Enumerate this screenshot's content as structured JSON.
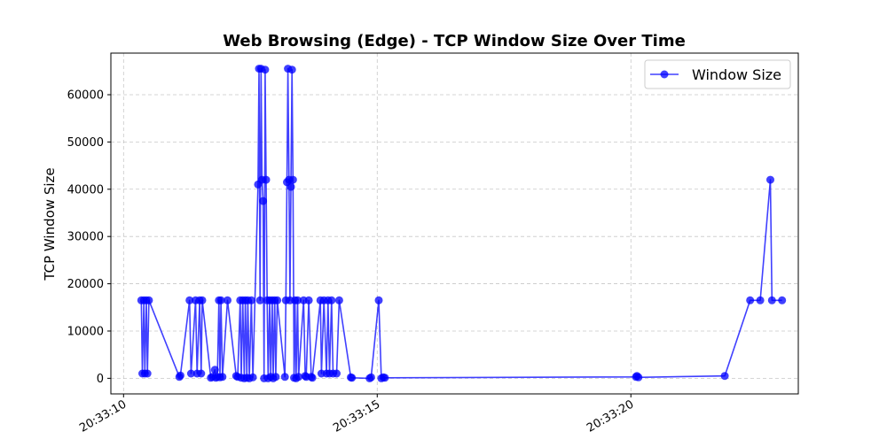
{
  "chart_data": {
    "type": "line",
    "title": "Web Browsing (Edge) - TCP Window Size Over Time",
    "xlabel": "",
    "ylabel": "TCP Window Size",
    "x_ticks": [
      "20:33:10",
      "20:33:15",
      "20:33:20"
    ],
    "x_tick_values": [
      10,
      15,
      20
    ],
    "y_ticks": [
      0,
      10000,
      20000,
      30000,
      40000,
      50000,
      60000
    ],
    "xlim": [
      9.75,
      23.3
    ],
    "ylim": [
      -3300,
      68800
    ],
    "grid": true,
    "legend_position": "upper right",
    "x_unit": "seconds after 20:33:00",
    "series": [
      {
        "name": "Window Size",
        "color": "#0000ff",
        "marker": "circle",
        "points": [
          [
            10.35,
            16500
          ],
          [
            10.37,
            1000
          ],
          [
            10.4,
            16500
          ],
          [
            10.42,
            1000
          ],
          [
            10.45,
            16500
          ],
          [
            10.47,
            1000
          ],
          [
            10.5,
            16500
          ],
          [
            11.1,
            300
          ],
          [
            11.12,
            600
          ],
          [
            11.3,
            16500
          ],
          [
            11.33,
            1000
          ],
          [
            11.42,
            16500
          ],
          [
            11.45,
            1000
          ],
          [
            11.5,
            16500
          ],
          [
            11.53,
            1000
          ],
          [
            11.55,
            16500
          ],
          [
            11.72,
            100
          ],
          [
            11.75,
            300
          ],
          [
            11.8,
            1800
          ],
          [
            11.82,
            100
          ],
          [
            11.85,
            300
          ],
          [
            11.88,
            16500
          ],
          [
            11.9,
            200
          ],
          [
            11.92,
            16500
          ],
          [
            11.95,
            300
          ],
          [
            12.05,
            16500
          ],
          [
            12.22,
            500
          ],
          [
            12.25,
            300
          ],
          [
            12.3,
            16500
          ],
          [
            12.32,
            100
          ],
          [
            12.35,
            16500
          ],
          [
            12.38,
            0
          ],
          [
            12.4,
            16500
          ],
          [
            12.43,
            100
          ],
          [
            12.45,
            16500
          ],
          [
            12.48,
            0
          ],
          [
            12.52,
            16500
          ],
          [
            12.55,
            200
          ],
          [
            12.65,
            41000
          ],
          [
            12.67,
            65500
          ],
          [
            12.69,
            16500
          ],
          [
            12.71,
            65500
          ],
          [
            12.73,
            42000
          ],
          [
            12.75,
            37500
          ],
          [
            12.77,
            0
          ],
          [
            12.79,
            65300
          ],
          [
            12.81,
            42000
          ],
          [
            12.83,
            16500
          ],
          [
            12.85,
            0
          ],
          [
            12.88,
            16500
          ],
          [
            12.9,
            300
          ],
          [
            12.93,
            16500
          ],
          [
            12.95,
            0
          ],
          [
            12.98,
            16500
          ],
          [
            13.0,
            300
          ],
          [
            13.03,
            16500
          ],
          [
            13.18,
            300
          ],
          [
            13.2,
            16500
          ],
          [
            13.22,
            41500
          ],
          [
            13.24,
            65500
          ],
          [
            13.26,
            42000
          ],
          [
            13.28,
            16500
          ],
          [
            13.3,
            40500
          ],
          [
            13.32,
            65300
          ],
          [
            13.34,
            42000
          ],
          [
            13.36,
            100
          ],
          [
            13.38,
            16500
          ],
          [
            13.4,
            0
          ],
          [
            13.43,
            16500
          ],
          [
            13.45,
            300
          ],
          [
            13.55,
            16500
          ],
          [
            13.58,
            500
          ],
          [
            13.6,
            300
          ],
          [
            13.65,
            16500
          ],
          [
            13.7,
            300
          ],
          [
            13.72,
            100
          ],
          [
            13.88,
            16500
          ],
          [
            13.9,
            1000
          ],
          [
            13.95,
            16500
          ],
          [
            14.0,
            1000
          ],
          [
            14.03,
            16500
          ],
          [
            14.06,
            1000
          ],
          [
            14.1,
            16500
          ],
          [
            14.13,
            1000
          ],
          [
            14.2,
            1000
          ],
          [
            14.25,
            16500
          ],
          [
            14.48,
            200
          ],
          [
            14.5,
            100
          ],
          [
            14.85,
            0
          ],
          [
            14.88,
            200
          ],
          [
            15.03,
            16500
          ],
          [
            15.08,
            0
          ],
          [
            15.12,
            200
          ],
          [
            15.15,
            100
          ],
          [
            20.1,
            300
          ],
          [
            20.12,
            500
          ],
          [
            20.15,
            200
          ],
          [
            21.85,
            500
          ],
          [
            22.35,
            16500
          ],
          [
            22.55,
            16500
          ],
          [
            22.75,
            42000
          ],
          [
            22.78,
            16500
          ],
          [
            22.98,
            16500
          ]
        ]
      }
    ]
  }
}
